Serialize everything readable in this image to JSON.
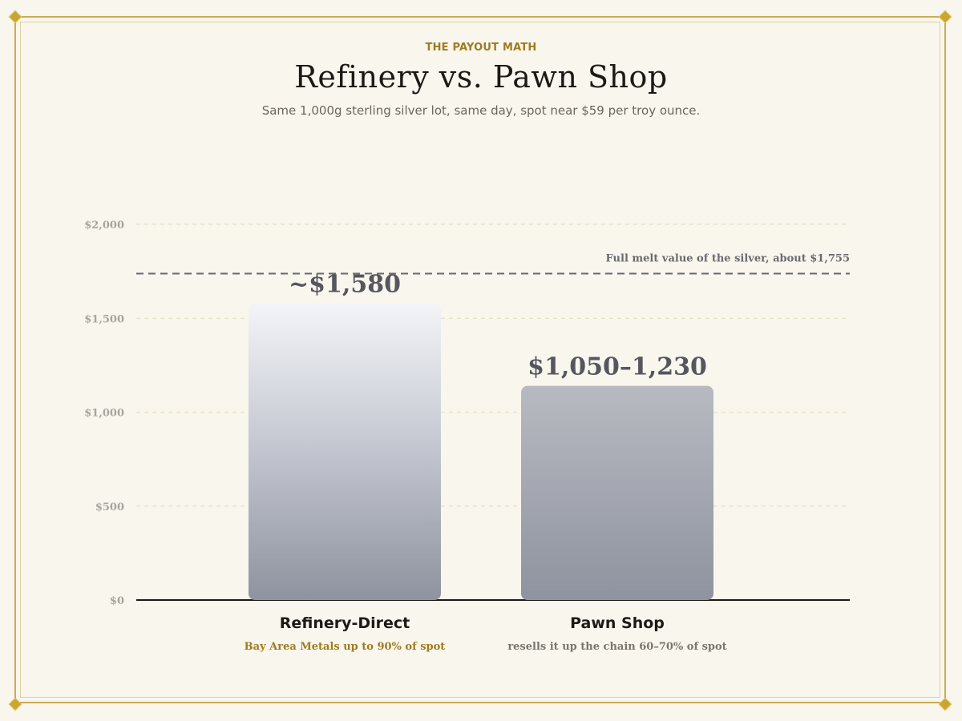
{
  "header": {
    "eyebrow": "THE PAYOUT MATH",
    "title": "Refinery vs. Pawn Shop",
    "subtitle": "Same 1,000g sterling silver lot, same day, spot near $59 per troy ounce."
  },
  "colors": {
    "gold": "#c9ab55",
    "note_gold": "#9e7b1f",
    "note_gray": "#7a766f",
    "bar_top_light": "#f3f4f8",
    "bar_bottom": "#8e939f",
    "axis": "#1d1a16"
  },
  "chart_data": {
    "type": "bar",
    "title": "Refinery vs. Pawn Shop",
    "subtitle": "Same 1,000g sterling silver lot, same day, spot near $59 per troy ounce.",
    "xlabel": "",
    "ylabel": "",
    "ylim": [
      0,
      2000
    ],
    "yticks": [
      0,
      500,
      1000,
      1500,
      2000
    ],
    "ytick_labels": [
      "$0",
      "$500",
      "$1,000",
      "$1,500",
      "$2,000"
    ],
    "grid": true,
    "categories": [
      "Refinery-Direct",
      "Pawn Shop"
    ],
    "notes": [
      "Bay Area Metals up to 90% of spot",
      "resells it up the chain 60–70% of spot"
    ],
    "values": [
      1580,
      1140
    ],
    "value_labels": [
      "~$1,580",
      "$1,050–1,230"
    ],
    "reference_line": {
      "value": 1755,
      "label": "Full melt value of the silver, about $1,755"
    }
  }
}
